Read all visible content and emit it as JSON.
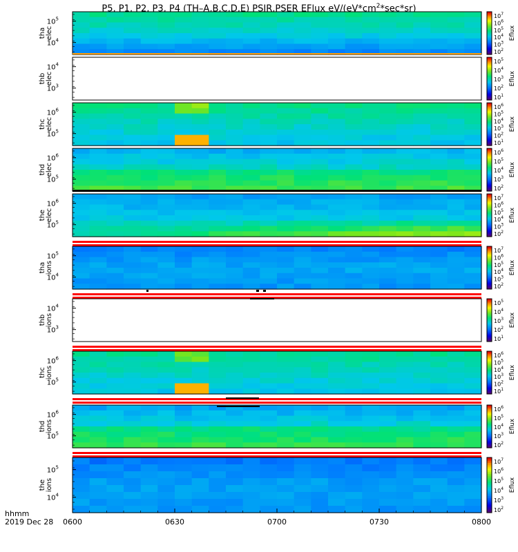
{
  "title": {
    "main": "P5, P1, P2, P3, P4 (TH–A,B,C,D,E) PSIR,PSER EFlux eV/(eV*cm",
    "sup": "2",
    "tail": "*sec*sr)"
  },
  "footer": {
    "line1": "hhmm",
    "line2": "2019 Dec 28"
  },
  "chart_data": {
    "type": "heatmap",
    "title": "P5, P1, P2, P3, P4 (TH-A,B,C,D,E) PSIR,PSER EFlux eV/(eV*cm^2*sec*sr)",
    "x_axis": {
      "ticks": [
        "0600",
        "0630",
        "0700",
        "0730",
        "0800"
      ],
      "range": [
        "06:00",
        "08:00"
      ]
    },
    "colorbar_label": "Eflux",
    "panels": [
      {
        "id": "tha_elec",
        "ylabel": [
          "tha",
          "elec"
        ],
        "y_scale": "log",
        "y_ticks": [
          "10^5",
          "10^4"
        ],
        "cbar_ticks": [
          "10^7",
          "10^6",
          "10^5",
          "10^4",
          "10^3",
          "10^2"
        ],
        "cmin_exp": 1,
        "cmax_exp": 7.5,
        "levels": [
          4.4,
          3.9,
          3.0
        ],
        "empty": false,
        "bottom_line": "orange"
      },
      {
        "id": "thb_elec",
        "ylabel": [
          "thb",
          "elec"
        ],
        "y_scale": "log",
        "y_ticks": [
          "10^4",
          "10^3"
        ],
        "cbar_ticks": [
          "10^5",
          "10^4",
          "10^3",
          "10^2",
          "10^1"
        ],
        "cmin_exp": 0.5,
        "cmax_exp": 5.5,
        "levels": [],
        "empty": true,
        "bottom_line": "none"
      },
      {
        "id": "thc_elec",
        "ylabel": [
          "thc",
          "elec"
        ],
        "y_scale": "log",
        "y_ticks": [
          "10^6",
          "10^5"
        ],
        "cbar_ticks": [
          "10^6",
          "10^5",
          "10^4",
          "10^3",
          "10^2",
          "10^1"
        ],
        "cmin_exp": 0.5,
        "cmax_exp": 6.5,
        "levels": [
          3.7,
          3.3,
          3.0
        ],
        "empty": false,
        "bottom_line": "none"
      },
      {
        "id": "thd_elec",
        "ylabel": [
          "thd",
          "elec"
        ],
        "y_scale": "log",
        "y_ticks": [
          "10^6",
          "10^5"
        ],
        "cbar_ticks": [
          "10^6",
          "10^5",
          "10^4",
          "10^3",
          "10^2"
        ],
        "cmin_exp": 1.5,
        "cmax_exp": 6.5,
        "levels": [
          3.4,
          3.9,
          4.3
        ],
        "empty": false,
        "bottom_line": "black"
      },
      {
        "id": "the_elec",
        "ylabel": [
          "the",
          "elec"
        ],
        "y_scale": "log",
        "y_ticks": [
          "10^6",
          "10^5"
        ],
        "cbar_ticks": [
          "10^7",
          "10^6",
          "10^5",
          "10^4",
          "10^3",
          "10^2"
        ],
        "cmin_exp": 1.5,
        "cmax_exp": 7.5,
        "levels": [
          3.6,
          4.0,
          4.5
        ],
        "empty": false,
        "bottom_line": "red"
      },
      {
        "id": "tha_ions",
        "ylabel": [
          "tha",
          "ions"
        ],
        "y_scale": "log",
        "y_ticks": [
          "10^5",
          "10^4"
        ],
        "cbar_ticks": [
          "10^7",
          "10^6",
          "10^5",
          "10^4",
          "10^3",
          "10^2"
        ],
        "cmin_exp": 1.5,
        "cmax_exp": 7.5,
        "levels": [
          3.3,
          3.7,
          3.5
        ],
        "empty": false,
        "bottom_line": "red"
      },
      {
        "id": "thb_ions",
        "ylabel": [
          "thb",
          "ions"
        ],
        "y_scale": "log",
        "y_ticks": [
          "10^4",
          "10^3"
        ],
        "cbar_ticks": [
          "10^5",
          "10^4",
          "10^3",
          "10^2",
          "10^1"
        ],
        "cmin_exp": 0.5,
        "cmax_exp": 5.5,
        "levels": [],
        "empty": true,
        "bottom_line": "red"
      },
      {
        "id": "thc_ions",
        "ylabel": [
          "thc",
          "ions"
        ],
        "y_scale": "log",
        "y_ticks": [
          "10^6",
          "10^5"
        ],
        "cbar_ticks": [
          "10^6",
          "10^5",
          "10^4",
          "10^3",
          "10^2",
          "10^1"
        ],
        "cmin_exp": 0.5,
        "cmax_exp": 6.5,
        "levels": [
          3.6,
          3.3,
          3.0
        ],
        "empty": false,
        "bottom_line": "red"
      },
      {
        "id": "thd_ions",
        "ylabel": [
          "thd",
          "ions"
        ],
        "y_scale": "log",
        "y_ticks": [
          "10^6",
          "10^5"
        ],
        "cbar_ticks": [
          "10^6",
          "10^5",
          "10^4",
          "10^3",
          "10^2"
        ],
        "cmin_exp": 1.5,
        "cmax_exp": 6.5,
        "levels": [
          3.3,
          3.8,
          4.2
        ],
        "empty": false,
        "bottom_line": "red"
      },
      {
        "id": "the_ions",
        "ylabel": [
          "the",
          "ions"
        ],
        "y_scale": "log",
        "y_ticks": [
          "10^5",
          "10^4"
        ],
        "cbar_ticks": [
          "10^7",
          "10^6",
          "10^5",
          "10^4",
          "10^3",
          "10^2"
        ],
        "cmin_exp": 1.5,
        "cmax_exp": 7.5,
        "levels": [
          3.2,
          3.6,
          3.5
        ],
        "empty": false,
        "bottom_line": "none"
      }
    ],
    "grid": false
  }
}
